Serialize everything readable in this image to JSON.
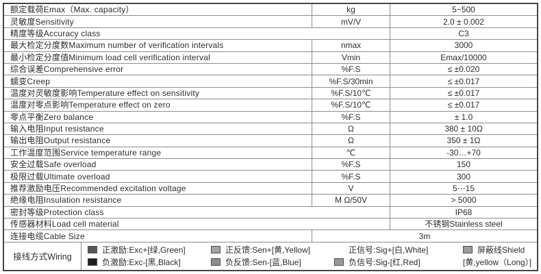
{
  "table": {
    "rows": [
      {
        "label": "额定载荷Emax（Max. capacity）",
        "unit": "kg",
        "value": "5~500"
      },
      {
        "label": "灵敏度Sensitivity",
        "unit": "mV/V",
        "value": "2.0 ± 0.002"
      },
      {
        "label": "精度等级Accuracy class",
        "unit": "",
        "value": "C3",
        "span": "label-unit"
      },
      {
        "label": "最大检定分度数Maximum number of verification intervals",
        "unit": "nmax",
        "value": "3000"
      },
      {
        "label": "最小检定分度值Minimum load cell verification interval",
        "unit": "Vmin",
        "value": "Emax/10000"
      },
      {
        "label": "综合误差Comprehensive error",
        "unit": "%F.S",
        "value": "≤ ±0.020"
      },
      {
        "label": "蠕变Creep",
        "unit": "%F.S/30min",
        "value": "≤ ±0.017"
      },
      {
        "label": "温度对灵敏度影响Temperature effect on sensitivity",
        "unit": "%F.S/10℃",
        "value": "≤ ±0.017"
      },
      {
        "label": "温度对零点影响Temperature effect on zero",
        "unit": "%F.S/10℃",
        "value": "≤ ±0.017"
      },
      {
        "label": "零点平衡Zero balance",
        "unit": "%F.S",
        "value": "± 1.0"
      },
      {
        "label": "输入电阻Input resistance",
        "unit": "Ω",
        "value": "380 ± 10Ω"
      },
      {
        "label": "输出电阻Output resistance",
        "unit": "Ω",
        "value": "350 ± 1Ω"
      },
      {
        "label": "工作温度范围Service temperature range",
        "unit": "℃",
        "value": "-30…+70"
      },
      {
        "label": "安全过载Safe overload",
        "unit": "%F.S",
        "value": "150"
      },
      {
        "label": "极限过载Ultimate overload",
        "unit": "%F.S",
        "value": "300"
      },
      {
        "label": "推荐激励电压Recommended excitation voltage",
        "unit": "V",
        "value": "5⋯15"
      },
      {
        "label": "绝缘电阻Insulation resistance",
        "unit": "M Ω/50V",
        "value": "> 5000"
      },
      {
        "label": "密封等级Protection class",
        "unit": "",
        "value": "IP68",
        "span": "label-unit"
      },
      {
        "label": "传感器材料Load cell material",
        "unit": "",
        "value": "不锈钢Stainless steel",
        "span": "label-unit"
      },
      {
        "label": "连接电缆Cable Size",
        "unit": "",
        "value": "3m",
        "span": "unit-value"
      }
    ],
    "wiring": {
      "label": "接线方式Wiring",
      "columns": [
        {
          "top": {
            "swatch": "#575757",
            "text": "正激励:Exc+[绿,Green]"
          },
          "bottom": {
            "swatch": "#1f1f1f",
            "text": "负激励:Exc-[黑,Black]"
          }
        },
        {
          "top": {
            "swatch": "#a1a1a1",
            "text": "正反馈:Sen+[黄,Yellow]"
          },
          "bottom": {
            "swatch": "#8d8d8d",
            "text": "负反馈:Sen-[蓝,Blue]"
          }
        },
        {
          "top": {
            "swatch": null,
            "align_spacer": true,
            "text": "正信号:Sig+[白,White]"
          },
          "bottom": {
            "swatch": "#999999",
            "text": "负信号:Sig-[红,Red]"
          }
        },
        {
          "top": {
            "swatch": "#9b9b9b",
            "text": "屏蔽线Shield"
          },
          "bottom": {
            "swatch": null,
            "text": "[黄,yellow（Long）]"
          }
        }
      ]
    }
  }
}
